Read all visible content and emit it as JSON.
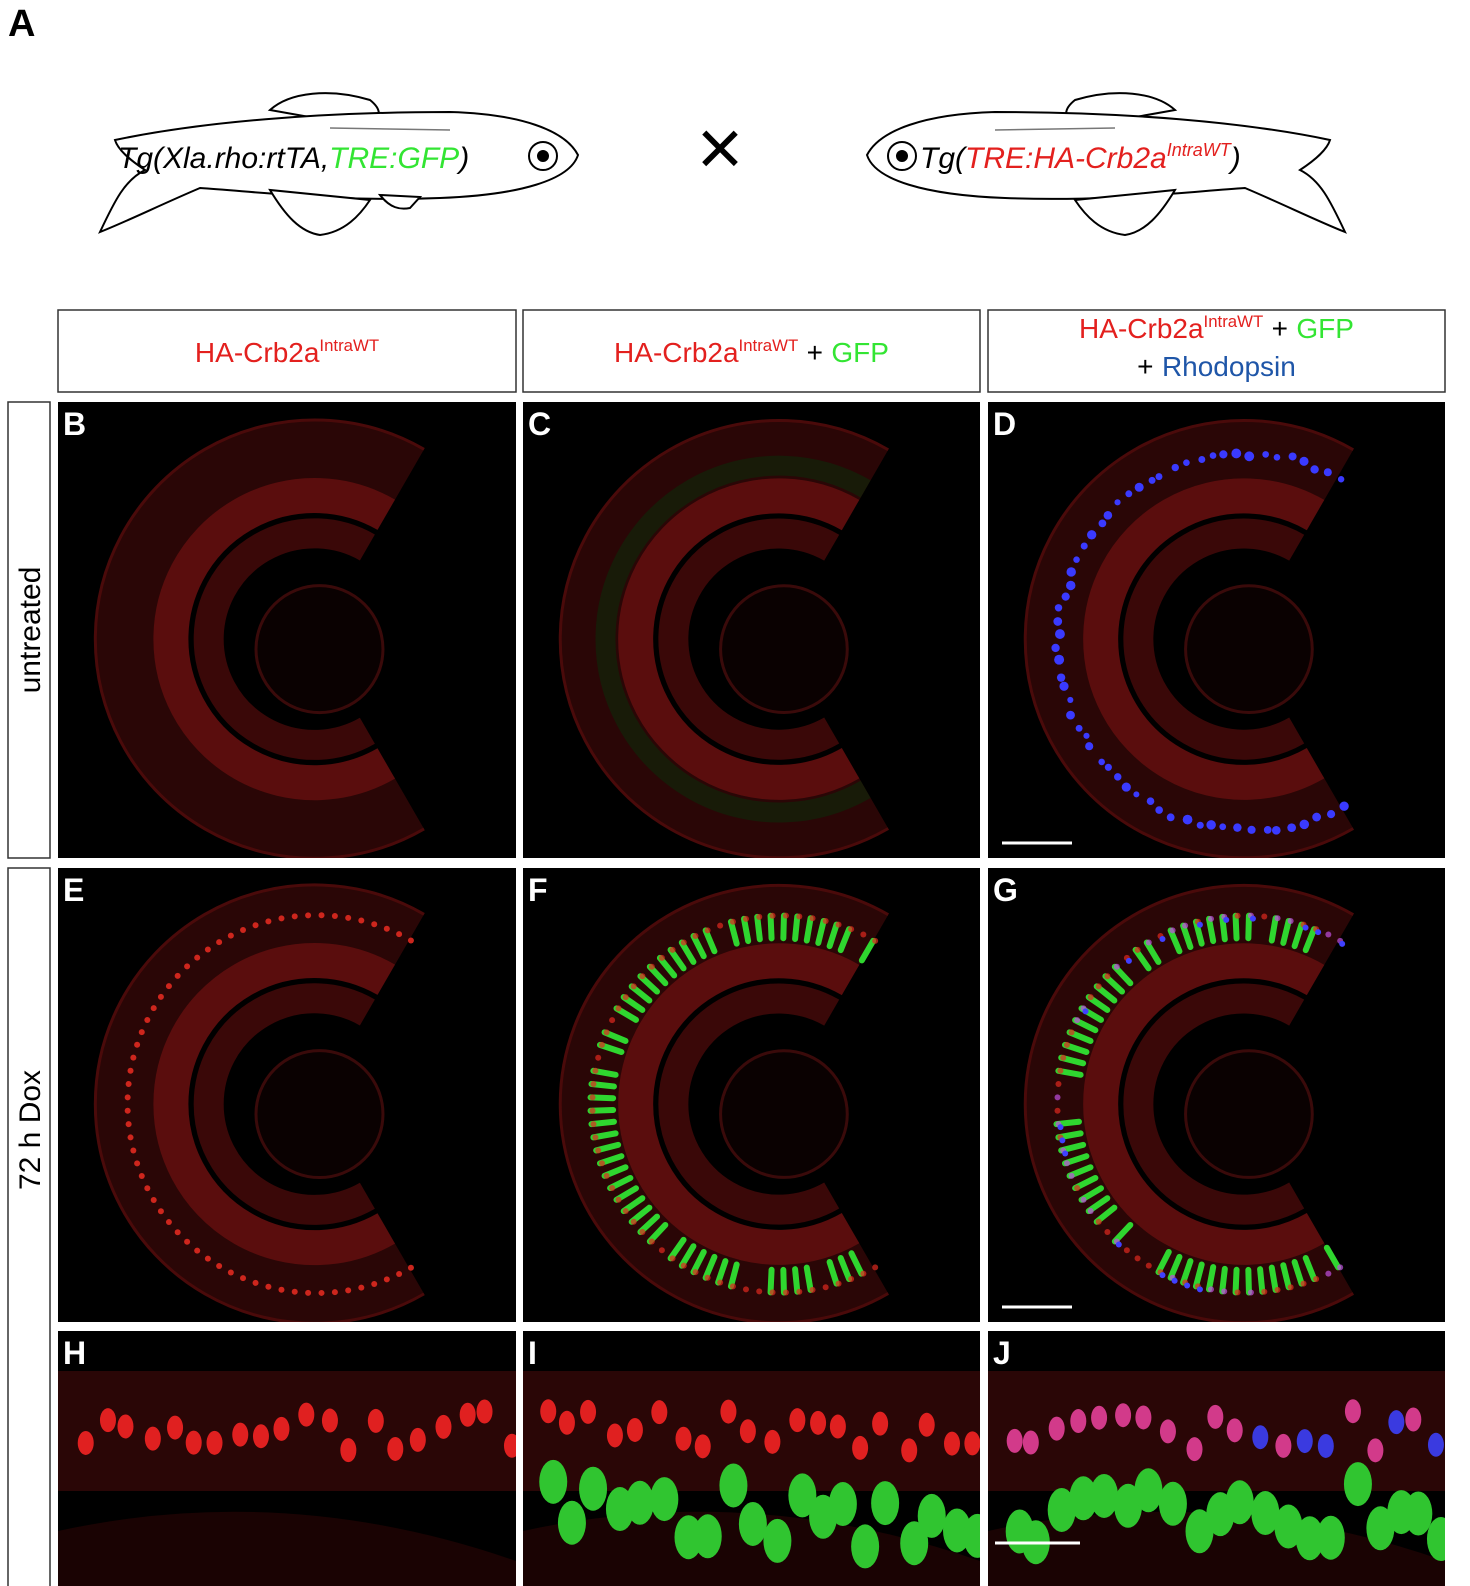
{
  "figure": {
    "panel_label": "A",
    "fish_left": [
      {
        "text": "Tg(Xla.rho:rtTA,",
        "color": "#000000"
      },
      {
        "text": "TRE:GFP",
        "color": "#33e533"
      },
      {
        "text": ")",
        "color": "#000000"
      }
    ],
    "cross": "×",
    "fish_right": [
      {
        "text": "Tg(",
        "color": "#000000"
      },
      {
        "text": "TRE:HA-Crb2a",
        "color": "#e3201e"
      },
      {
        "text": "IntraWT",
        "color": "#e3201e",
        "sup": true
      },
      {
        "text": ")",
        "color": "#000000"
      }
    ],
    "column_headers": [
      [
        [
          {
            "text": "HA-Crb2a",
            "color": "#e3201e"
          },
          {
            "text": "IntraWT",
            "color": "#e3201e",
            "sup": true
          }
        ]
      ],
      [
        [
          {
            "text": "HA-Crb2a",
            "color": "#e3201e"
          },
          {
            "text": "IntraWT",
            "color": "#e3201e",
            "sup": true
          },
          {
            "text": "+",
            "color": "#000000"
          },
          {
            "text": "GFP",
            "color": "#33e533"
          }
        ]
      ],
      [
        [
          {
            "text": "HA-Crb2a",
            "color": "#e3201e"
          },
          {
            "text": "IntraWT",
            "color": "#e3201e",
            "sup": true
          },
          {
            "text": "+",
            "color": "#000000"
          },
          {
            "text": "GFP",
            "color": "#33e533"
          }
        ],
        [
          {
            "text": "+",
            "color": "#000000"
          },
          {
            "text": "Rhodopsin",
            "color": "#1f56a8"
          }
        ]
      ]
    ],
    "row_labels": [
      "untreated",
      "72 h Dox"
    ],
    "panel_letters": [
      [
        "B",
        "C",
        "D"
      ],
      [
        "E",
        "F",
        "G"
      ],
      [
        "H",
        "I",
        "J"
      ]
    ]
  }
}
